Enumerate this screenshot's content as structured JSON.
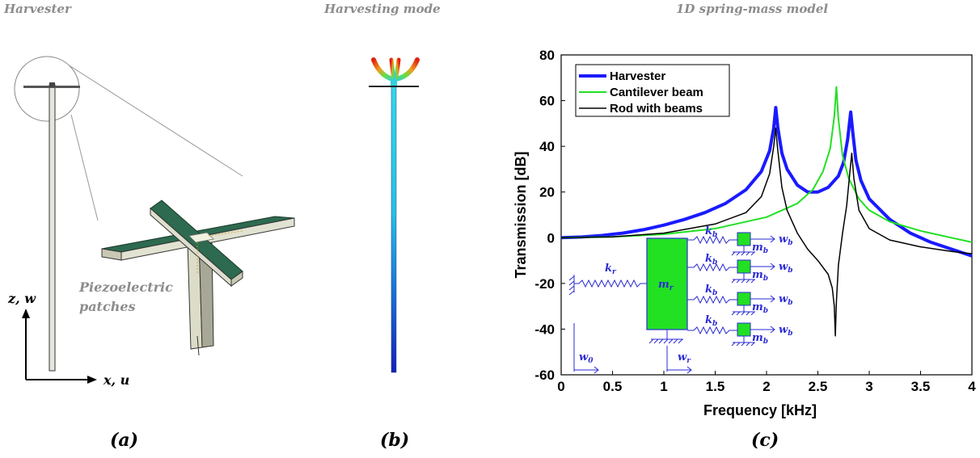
{
  "titles": {
    "a": "Harvester",
    "b": "Harvesting mode",
    "c": "1D spring-mass model"
  },
  "panel_labels": {
    "a": "(a)",
    "b": "(b)",
    "c": "(c)"
  },
  "panel_a": {
    "patch_label_line1": "Piezoelectric",
    "patch_label_line2": "patches",
    "z_axis": "z, w",
    "x_axis": "x, u"
  },
  "inset": {
    "k_r": "k",
    "k_r_sub": "r",
    "m_r": "m",
    "m_r_sub": "r",
    "k_b": "k",
    "k_b_sub": "b",
    "m_b": "m",
    "m_b_sub": "b",
    "w_b": "w",
    "w_b_sub": "b",
    "w_0": "w",
    "w_0_sub": "0",
    "w_r": "w",
    "w_r_sub": "r"
  },
  "colors": {
    "harvester": "#1a1aff",
    "cantilever": "#22e022",
    "rod": "#000000",
    "inset": "#2b2bd4",
    "mass_fill": "#22e022",
    "title_gray": "#8c8c8c"
  },
  "chart_data": {
    "type": "line",
    "title": "",
    "xlabel": "Frequency [kHz]",
    "ylabel": "Transmission [dB]",
    "xlim": [
      0,
      4
    ],
    "ylim": [
      -60,
      80
    ],
    "xticks": [
      0,
      0.5,
      1,
      1.5,
      2,
      2.5,
      3,
      3.5,
      4
    ],
    "xtick_labels": [
      "0",
      "0.5",
      "1",
      "1.5",
      "2",
      "2.5",
      "3",
      "3.5",
      "4"
    ],
    "yticks": [
      -60,
      -40,
      -20,
      0,
      20,
      40,
      60,
      80
    ],
    "ytick_labels": [
      "-60",
      "-40",
      "-20",
      "0",
      "20",
      "40",
      "60",
      "80"
    ],
    "legend_position": "top-left",
    "grid": false,
    "series": [
      {
        "name": "Harvester",
        "x": [
          0,
          0.2,
          0.4,
          0.6,
          0.8,
          1.0,
          1.2,
          1.4,
          1.6,
          1.8,
          1.95,
          2.03,
          2.07,
          2.09,
          2.11,
          2.15,
          2.2,
          2.3,
          2.4,
          2.5,
          2.6,
          2.7,
          2.75,
          2.79,
          2.82,
          2.84,
          2.87,
          2.92,
          3.0,
          3.2,
          3.4,
          3.6,
          3.8,
          4.0
        ],
        "y": [
          0,
          0.3,
          1,
          2,
          3.5,
          5.5,
          8,
          11,
          15,
          21,
          29,
          38,
          48,
          57,
          48,
          37,
          30,
          23,
          20,
          20,
          22,
          27,
          33,
          43,
          55,
          46,
          34,
          25,
          17,
          8,
          2,
          -2,
          -5,
          -8
        ]
      },
      {
        "name": "Cantilever beam",
        "x": [
          0,
          0.5,
          1.0,
          1.5,
          2.0,
          2.3,
          2.45,
          2.55,
          2.62,
          2.66,
          2.68,
          2.7,
          2.74,
          2.8,
          2.9,
          3.0,
          3.2,
          3.5,
          3.8,
          4.0
        ],
        "y": [
          0,
          0.4,
          1.5,
          4,
          9,
          15,
          21,
          29,
          39,
          53,
          66,
          52,
          36,
          26,
          17,
          12,
          7,
          3,
          0,
          -2
        ]
      },
      {
        "name": "Rod with beams",
        "x": [
          0,
          0.5,
          1.0,
          1.5,
          1.8,
          1.95,
          2.03,
          2.07,
          2.09,
          2.11,
          2.15,
          2.2,
          2.3,
          2.4,
          2.5,
          2.6,
          2.64,
          2.66,
          2.67,
          2.68,
          2.7,
          2.74,
          2.78,
          2.81,
          2.83,
          2.85,
          2.9,
          3.0,
          3.2,
          3.5,
          3.8,
          4.0
        ],
        "y": [
          0,
          0.4,
          2,
          6,
          11,
          18,
          28,
          40,
          48,
          38,
          22,
          12,
          2,
          -5,
          -10,
          -16,
          -22,
          -30,
          -43,
          -28,
          -12,
          2,
          14,
          28,
          37,
          26,
          12,
          4,
          -1,
          -4,
          -6,
          -7
        ]
      }
    ]
  }
}
